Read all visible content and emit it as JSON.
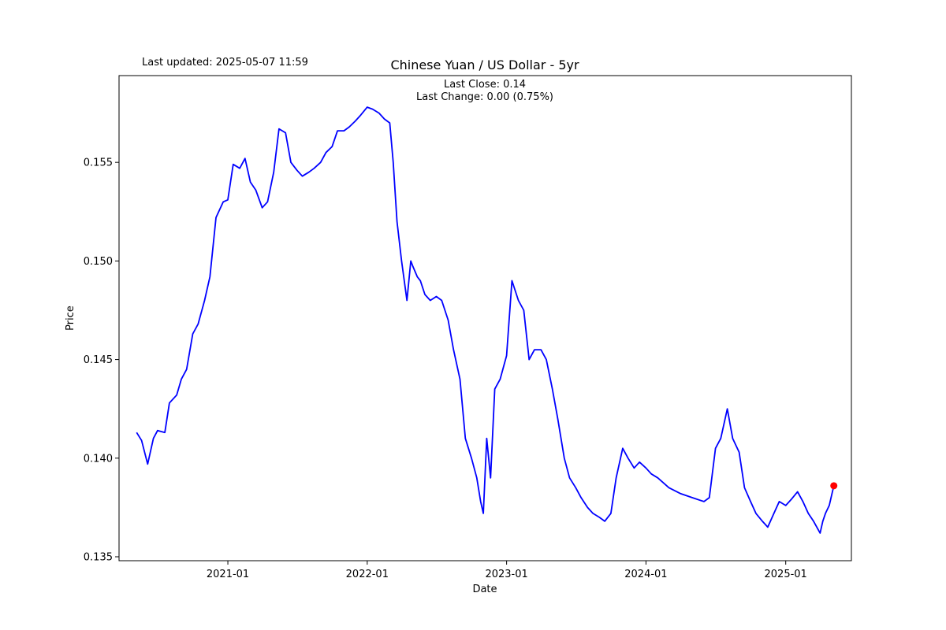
{
  "header": {
    "last_updated": "Last updated: 2025-05-07 11:59"
  },
  "chart_data": {
    "type": "line",
    "title": "Chinese Yuan / US Dollar - 5yr",
    "xlabel": "Date",
    "ylabel": "Price",
    "annotations": [
      "Last Close: 0.14",
      "Last Change: 0.00 (0.75%)"
    ],
    "x_range": [
      "2020-05-07",
      "2025-05-07"
    ],
    "xlim": [
      "2020-03-22",
      "2025-06-22"
    ],
    "ylim": [
      0.1348,
      0.1594
    ],
    "x_ticks": [
      {
        "date": "2021-01-01",
        "label": "2021-01"
      },
      {
        "date": "2022-01-01",
        "label": "2022-01"
      },
      {
        "date": "2023-01-01",
        "label": "2023-01"
      },
      {
        "date": "2024-01-01",
        "label": "2024-01"
      },
      {
        "date": "2025-01-01",
        "label": "2025-01"
      }
    ],
    "y_ticks": [
      0.135,
      0.14,
      0.145,
      0.15,
      0.155
    ],
    "y_tick_labels": [
      "0.135",
      "0.140",
      "0.145",
      "0.150",
      "0.155"
    ],
    "grid": false,
    "colors": {
      "line": "#0000ff",
      "marker": "#ff0000"
    },
    "series": [
      {
        "name": "",
        "x": [
          "2020-05-07",
          "2020-05-20",
          "2020-06-05",
          "2020-06-20",
          "2020-07-01",
          "2020-07-20",
          "2020-08-01",
          "2020-08-20",
          "2020-09-01",
          "2020-09-15",
          "2020-10-01",
          "2020-10-15",
          "2020-11-01",
          "2020-11-15",
          "2020-12-01",
          "2020-12-20",
          "2021-01-01",
          "2021-01-15",
          "2021-02-01",
          "2021-02-15",
          "2021-03-01",
          "2021-03-15",
          "2021-04-01",
          "2021-04-15",
          "2021-05-01",
          "2021-05-15",
          "2021-06-01",
          "2021-06-15",
          "2021-07-01",
          "2021-07-15",
          "2021-08-01",
          "2021-08-15",
          "2021-09-01",
          "2021-09-15",
          "2021-10-01",
          "2021-10-15",
          "2021-11-01",
          "2021-11-15",
          "2021-12-01",
          "2021-12-15",
          "2022-01-01",
          "2022-01-15",
          "2022-02-01",
          "2022-02-15",
          "2022-03-01",
          "2022-03-10",
          "2022-03-20",
          "2022-04-01",
          "2022-04-15",
          "2022-04-25",
          "2022-05-01",
          "2022-05-12",
          "2022-05-20",
          "2022-06-01",
          "2022-06-15",
          "2022-07-01",
          "2022-07-15",
          "2022-08-01",
          "2022-08-15",
          "2022-09-01",
          "2022-09-15",
          "2022-10-01",
          "2022-10-15",
          "2022-10-25",
          "2022-11-01",
          "2022-11-10",
          "2022-11-20",
          "2022-12-01",
          "2022-12-15",
          "2023-01-01",
          "2023-01-15",
          "2023-02-01",
          "2023-02-15",
          "2023-03-01",
          "2023-03-15",
          "2023-04-01",
          "2023-04-15",
          "2023-05-01",
          "2023-05-15",
          "2023-06-01",
          "2023-06-15",
          "2023-07-01",
          "2023-07-15",
          "2023-08-01",
          "2023-08-15",
          "2023-09-01",
          "2023-09-15",
          "2023-10-01",
          "2023-10-15",
          "2023-11-01",
          "2023-11-15",
          "2023-12-01",
          "2023-12-15",
          "2024-01-01",
          "2024-01-15",
          "2024-02-01",
          "2024-03-01",
          "2024-04-01",
          "2024-05-01",
          "2024-06-01",
          "2024-06-15",
          "2024-07-01",
          "2024-07-15",
          "2024-08-01",
          "2024-08-15",
          "2024-09-01",
          "2024-09-15",
          "2024-10-01",
          "2024-10-15",
          "2024-11-01",
          "2024-11-15",
          "2024-12-01",
          "2024-12-15",
          "2025-01-01",
          "2025-01-15",
          "2025-02-01",
          "2025-02-15",
          "2025-03-01",
          "2025-03-15",
          "2025-04-01",
          "2025-04-08",
          "2025-04-15",
          "2025-04-25",
          "2025-05-07"
        ],
        "y": [
          0.1413,
          0.1409,
          0.1397,
          0.141,
          0.1414,
          0.1413,
          0.1428,
          0.1432,
          0.144,
          0.1445,
          0.1463,
          0.1468,
          0.148,
          0.1492,
          0.1522,
          0.153,
          0.1531,
          0.1549,
          0.1547,
          0.1552,
          0.154,
          0.1536,
          0.1527,
          0.153,
          0.1545,
          0.1567,
          0.1565,
          0.155,
          0.1546,
          0.1543,
          0.1545,
          0.1547,
          0.155,
          0.1555,
          0.1558,
          0.1566,
          0.1566,
          0.1568,
          0.1571,
          0.1574,
          0.1578,
          0.1577,
          0.1575,
          0.1572,
          0.157,
          0.155,
          0.152,
          0.15,
          0.148,
          0.15,
          0.1497,
          0.1492,
          0.149,
          0.1483,
          0.148,
          0.1482,
          0.148,
          0.147,
          0.1455,
          0.144,
          0.141,
          0.14,
          0.139,
          0.1378,
          0.1372,
          0.141,
          0.139,
          0.1435,
          0.144,
          0.1452,
          0.149,
          0.148,
          0.1475,
          0.145,
          0.1455,
          0.1455,
          0.145,
          0.1435,
          0.142,
          0.14,
          0.139,
          0.1385,
          0.138,
          0.1375,
          0.1372,
          0.137,
          0.1368,
          0.1372,
          0.139,
          0.1405,
          0.14,
          0.1395,
          0.1398,
          0.1395,
          0.1392,
          0.139,
          0.1385,
          0.1382,
          0.138,
          0.1378,
          0.138,
          0.1405,
          0.141,
          0.1425,
          0.141,
          0.1403,
          0.1385,
          0.1378,
          0.1372,
          0.1368,
          0.1365,
          0.1372,
          0.1378,
          0.1376,
          0.1379,
          0.1383,
          0.1378,
          0.1372,
          0.1368,
          0.1362,
          0.1368,
          0.1372,
          0.1376,
          0.1386
        ]
      }
    ],
    "last_point": {
      "x": "2025-05-07",
      "y": 0.1386
    }
  }
}
